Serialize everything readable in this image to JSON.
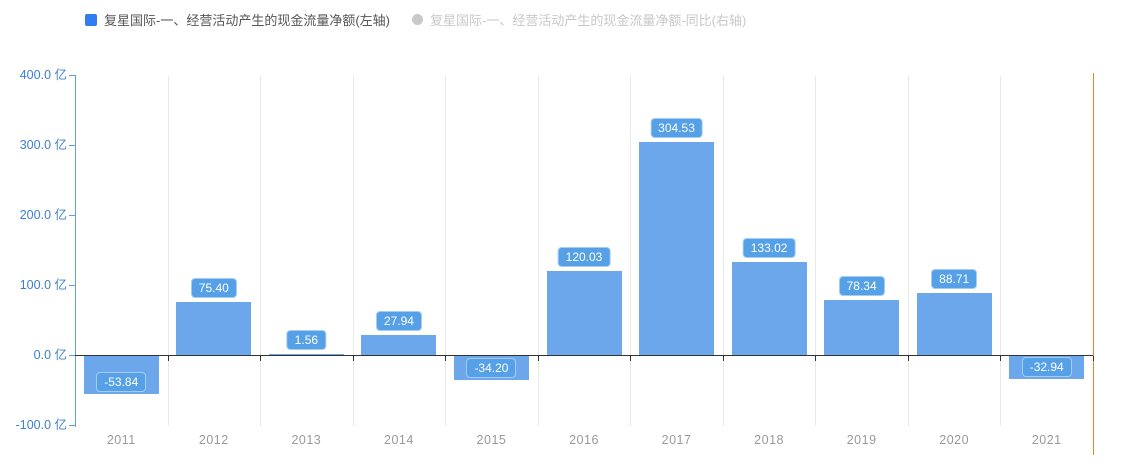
{
  "chart_data": {
    "type": "bar",
    "title": "",
    "categories": [
      "2011",
      "2012",
      "2013",
      "2014",
      "2015",
      "2016",
      "2017",
      "2018",
      "2019",
      "2020",
      "2021"
    ],
    "series": [
      {
        "name": "复星国际-一、经营活动产生的现金流量净额(左轴)",
        "axis": "left",
        "visible": true,
        "values": [
          -53.84,
          75.4,
          1.56,
          27.94,
          -34.2,
          120.03,
          304.53,
          133.02,
          78.34,
          88.71,
          -32.94
        ],
        "value_labels": [
          "-53.84",
          "75.40",
          "1.56",
          "27.94",
          "-34.20",
          "120.03",
          "304.53",
          "133.02",
          "78.34",
          "88.71",
          "-32.94"
        ]
      },
      {
        "name": "复星国际-一、经营活动产生的现金流量净额-同比(右轴)",
        "axis": "right",
        "visible": false,
        "values": []
      }
    ],
    "y_axis": {
      "unit": "亿",
      "ticks": [
        400,
        300,
        200,
        100,
        0,
        -100
      ],
      "tick_labels": [
        "400.0 亿",
        "300.0 亿",
        "200.0 亿",
        "100.0 亿",
        "0.0 亿",
        "-100.0 亿"
      ],
      "ylim": [
        -100,
        400
      ]
    },
    "grid": "vertical-category-separators-only",
    "legend_position": "top-left",
    "value_label_decimals": 2
  },
  "colors": {
    "background": "#FFFFFF",
    "bar": "#6BA7EA",
    "badge_bg": "#55A0E6",
    "badge_border": "#A5CDF3",
    "badge_text": "#FFFFFF",
    "left_axis": "#5E9FE0",
    "y_label": "#3E7FD0",
    "zero_line": "#333333",
    "gridline": "#E9E9E9",
    "x_label": "#999999",
    "right_axis": "#E8872B",
    "legend_active_marker": "#2F7DEE",
    "legend_active_text": "#555555",
    "legend_inactive": "#C8C8C8"
  }
}
